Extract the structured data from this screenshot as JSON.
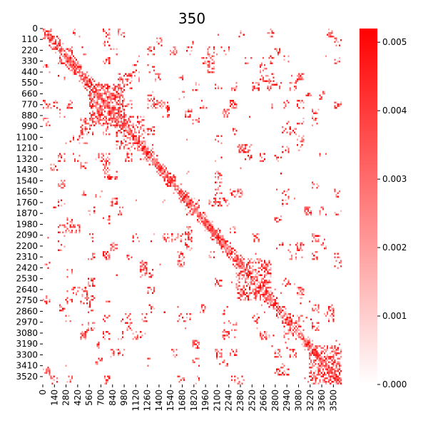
{
  "chart_data": {
    "type": "heatmap",
    "title": "350",
    "xlabel": "",
    "ylabel": "",
    "matrix_size": 3600,
    "x_ticks": [
      0,
      140,
      280,
      420,
      560,
      700,
      840,
      980,
      1120,
      1260,
      1400,
      1540,
      1680,
      1820,
      1960,
      2100,
      2240,
      2380,
      2520,
      2660,
      2800,
      2940,
      3080,
      3220,
      3360,
      3500
    ],
    "y_ticks": [
      0,
      110,
      220,
      330,
      440,
      550,
      660,
      770,
      880,
      990,
      1100,
      1210,
      1320,
      1430,
      1540,
      1650,
      1760,
      1870,
      1980,
      2090,
      2200,
      2310,
      2420,
      2530,
      2640,
      2750,
      2860,
      2970,
      3080,
      3190,
      3300,
      3410,
      3520
    ],
    "colorbar": {
      "min": 0.0,
      "max": 0.0052,
      "ticks": [
        "0.000",
        "0.001",
        "0.002",
        "0.003",
        "0.004",
        "0.005"
      ],
      "low_color": "#ffffff",
      "high_color": "#ff0000"
    },
    "diagonal": "strong contacts along the main diagonal",
    "dense_blocks": [
      {
        "rows": [
          550,
          990
        ],
        "cols": [
          550,
          990
        ],
        "level": 0.004
      },
      {
        "rows": [
          880,
          1210
        ],
        "cols": [
          880,
          1210
        ],
        "level": 0.003
      },
      {
        "rows": [
          2310,
          2750
        ],
        "cols": [
          2310,
          2750
        ],
        "level": 0.003
      },
      {
        "rows": [
          3190,
          3600
        ],
        "cols": [
          3190,
          3600
        ],
        "level": 0.003
      }
    ],
    "grid": false,
    "legend": "colorbar-right"
  }
}
